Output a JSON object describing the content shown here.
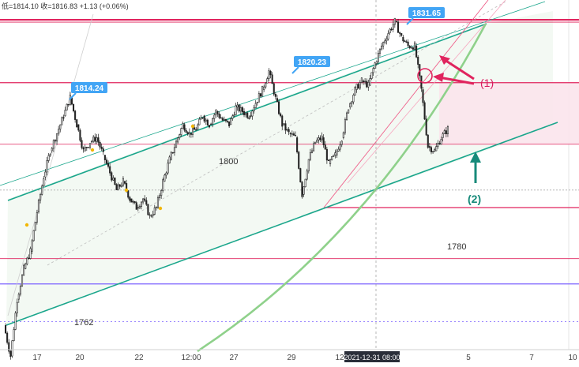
{
  "header": {
    "text": "低=1814.10 收=1816.83 +1.13 (+0.06%)"
  },
  "chart_data": {
    "type": "candlestick",
    "x_ticks": [
      "17",
      "20",
      "22",
      "12:00",
      "27",
      "29",
      "12",
      "2021-12-31   08:00",
      "5",
      "7",
      "10"
    ],
    "highlighted_x_label": "2021-12-31   08:00",
    "price_range": [
      1757,
      1834
    ],
    "price_badges": [
      {
        "label": "1831.65",
        "value": 1831.65
      },
      {
        "label": "1820.23",
        "value": 1820.23
      },
      {
        "label": "1814.24",
        "value": 1814.24
      }
    ],
    "price_labels": [
      {
        "label": "1800",
        "value": 1800
      },
      {
        "label": "1780",
        "value": 1780
      },
      {
        "label": "1762",
        "value": 1762
      }
    ],
    "horizontal_levels": [
      1832,
      1817.6,
      1803.5,
      1793,
      1777.3,
      1771.5,
      1762.9
    ],
    "close_path": [
      1762,
      1755,
      1768,
      1775,
      1779,
      1788,
      1796,
      1802,
      1806,
      1810,
      1814.24,
      1808,
      1802,
      1804,
      1805,
      1801,
      1797,
      1793,
      1795,
      1791,
      1789,
      1791,
      1787,
      1789,
      1795,
      1800,
      1804,
      1808,
      1806,
      1807,
      1810,
      1808,
      1811,
      1809,
      1808,
      1812,
      1811,
      1810,
      1813,
      1816,
      1820.23,
      1814,
      1808,
      1806,
      1805,
      1792,
      1800,
      1804,
      1805,
      1799,
      1801,
      1805,
      1812,
      1816,
      1818,
      1817,
      1822,
      1826,
      1829,
      1831.65,
      1828,
      1826,
      1826,
      1816,
      1803,
      1802,
      1805,
      1807
    ]
  },
  "annotations": {
    "label1": "(1)",
    "label2": "(2)"
  },
  "colors": {
    "teal": "#1aa68c",
    "red": "#e0245e",
    "green_curve": "#8fd18b",
    "badge": "#42a5f5",
    "violet": "#7b61ff"
  }
}
